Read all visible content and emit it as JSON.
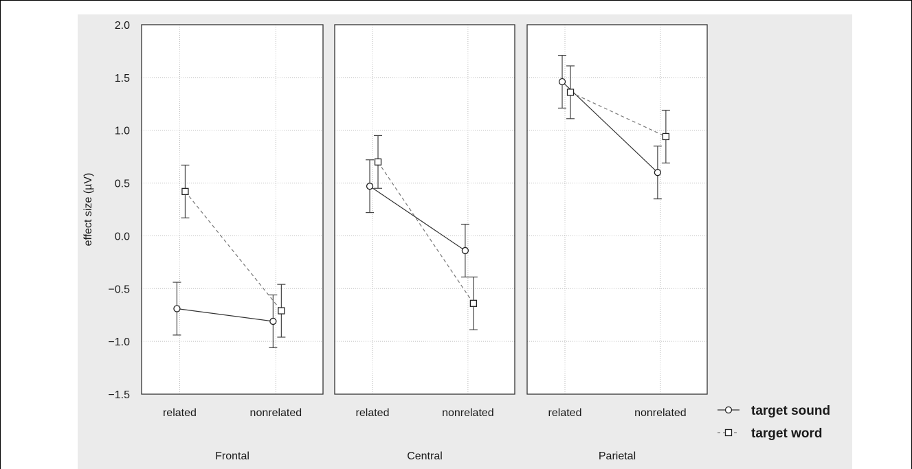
{
  "chart_data": {
    "type": "line",
    "ylabel": "effect size (µV)",
    "ylim": [
      -1.5,
      2.0
    ],
    "yticks": [
      2.0,
      1.5,
      1.0,
      0.5,
      0.0,
      -0.5,
      -1.0,
      -1.5
    ],
    "ytick_labels": [
      "2.0",
      "1.5",
      "1.0",
      "0.5",
      "0.0",
      "−0.5",
      "−1.0",
      "−1.5"
    ],
    "categories": [
      "related",
      "nonrelated"
    ],
    "grid": true,
    "legend_position": "bottom-right",
    "panels": [
      {
        "name": "Frontal",
        "series": [
          {
            "name": "target sound",
            "values": [
              -0.69,
              -0.81
            ],
            "err": [
              0.25,
              0.25
            ]
          },
          {
            "name": "target word",
            "values": [
              0.42,
              -0.71
            ],
            "err": [
              0.25,
              0.25
            ]
          }
        ]
      },
      {
        "name": "Central",
        "series": [
          {
            "name": "target sound",
            "values": [
              0.47,
              -0.14
            ],
            "err": [
              0.25,
              0.25
            ]
          },
          {
            "name": "target word",
            "values": [
              0.7,
              -0.64
            ],
            "err": [
              0.25,
              0.25
            ]
          }
        ]
      },
      {
        "name": "Parietal",
        "series": [
          {
            "name": "target sound",
            "values": [
              1.46,
              0.6
            ],
            "err": [
              0.25,
              0.25
            ]
          },
          {
            "name": "target word",
            "values": [
              1.36,
              0.94
            ],
            "err": [
              0.25,
              0.25
            ]
          }
        ]
      }
    ],
    "legend": [
      {
        "name": "target sound",
        "marker": "circle",
        "line": "solid"
      },
      {
        "name": "target word",
        "marker": "square",
        "line": "dashed"
      }
    ]
  }
}
